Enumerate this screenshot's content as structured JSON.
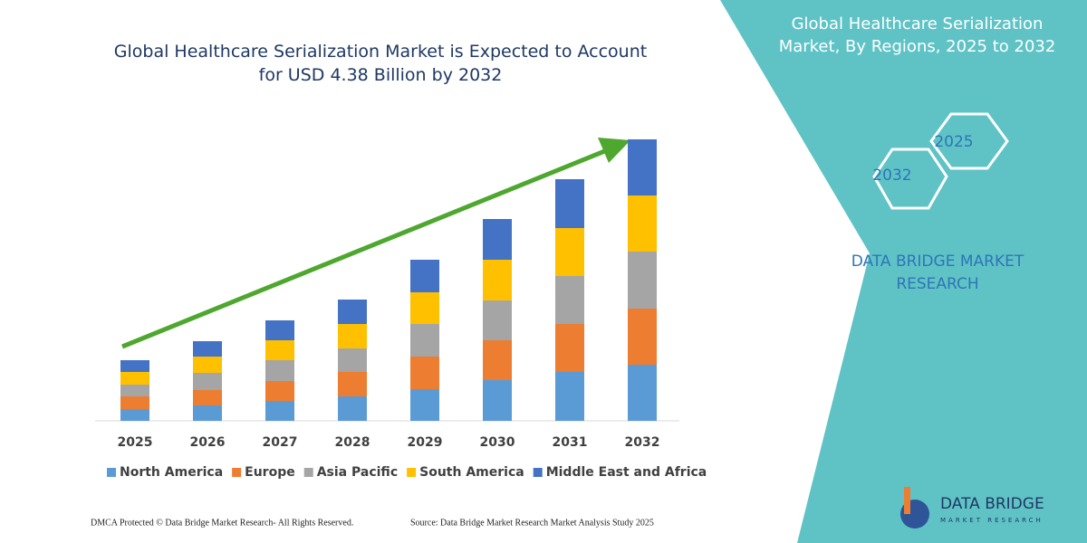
{
  "chart_data": {
    "type": "stacked_bar",
    "title": "Global Healthcare Serialization Market is Expected to Account for USD 4.38 Billion by 2032",
    "categories": [
      "2025",
      "2026",
      "2027",
      "2028",
      "2029",
      "2030",
      "2031",
      "2032"
    ],
    "series": [
      {
        "name": "North America",
        "color": "#5b9bd5",
        "values": [
          13,
          17,
          22,
          27,
          35,
          45,
          54,
          62
        ]
      },
      {
        "name": "Europe",
        "color": "#ed7d31",
        "values": [
          14,
          17,
          22,
          27,
          36,
          44,
          53,
          62
        ]
      },
      {
        "name": "Asia Pacific",
        "color": "#a5a5a5",
        "values": [
          13,
          19,
          23,
          26,
          36,
          44,
          53,
          63
        ]
      },
      {
        "name": "South America",
        "color": "#ffc000",
        "values": [
          14,
          18,
          22,
          27,
          35,
          45,
          53,
          62
        ]
      },
      {
        "name": "Middle East and Africa",
        "color": "#4472c4",
        "values": [
          13,
          17,
          22,
          27,
          36,
          45,
          54,
          62
        ]
      }
    ],
    "legend": "bottom",
    "grid": false
  },
  "side_panel": {
    "title": "Global Healthcare Serialization Market, By Regions, 2025 to 2032",
    "hexagons": [
      "2025",
      "2032"
    ],
    "brand": "DATA BRIDGE MARKET RESEARCH"
  },
  "footer": {
    "left": "DMCA Protected © Data Bridge Market Research- All Rights Reserved.",
    "right": "Source: Data Bridge Market Research Market Analysis Study 2025"
  },
  "logo": {
    "name": "DATA BRIDGE",
    "tagline": "MARKET RESEARCH"
  }
}
